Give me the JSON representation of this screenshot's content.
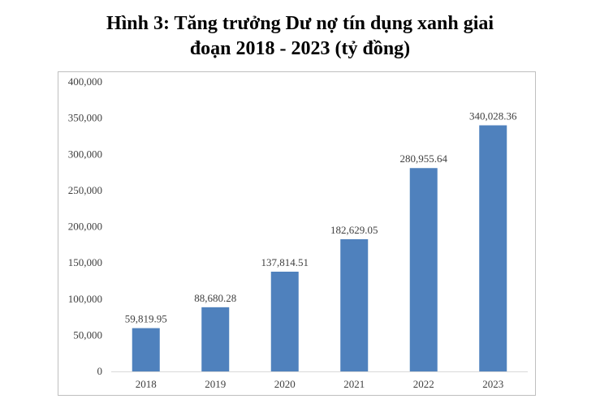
{
  "chart_data": {
    "type": "bar",
    "title_line1": "Hình 3: Tăng trưởng Dư nợ tín dụng xanh giai",
    "title_line2": "đoạn 2018 - 2023 (tỷ đồng)",
    "categories": [
      "2018",
      "2019",
      "2020",
      "2021",
      "2022",
      "2023"
    ],
    "values": [
      59819.95,
      88680.28,
      137814.51,
      182629.05,
      280955.64,
      340028.36
    ],
    "data_labels": [
      "59,819.95",
      "88,680.28",
      "137,814.51",
      "182,629.05",
      "280,955.64",
      "340,028.36"
    ],
    "y_ticks": [
      0,
      50000,
      100000,
      150000,
      200000,
      250000,
      300000,
      350000,
      400000
    ],
    "y_tick_labels": [
      "0",
      "50,000",
      "100,000",
      "150,000",
      "200,000",
      "250,000",
      "300,000",
      "350,000",
      "400,000"
    ],
    "ylim": [
      0,
      400000
    ],
    "xlabel": "",
    "ylabel": "",
    "grid": false,
    "legend": "none",
    "bar_color": "#4f81bd"
  }
}
